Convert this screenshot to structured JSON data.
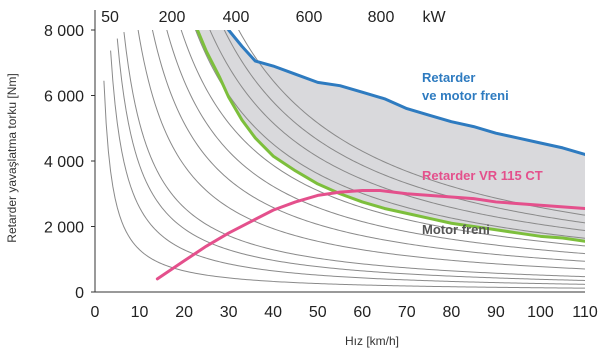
{
  "chart_data": {
    "type": "line",
    "xlabel": "Hız [km/h]",
    "ylabel": "Retarder yavaşlatma torku [Nm]",
    "xlim": [
      0,
      110
    ],
    "ylim": [
      0,
      8000
    ],
    "x_ticks": [
      "0",
      "10",
      "20",
      "30",
      "40",
      "50",
      "60",
      "70",
      "80",
      "90",
      "100",
      "110"
    ],
    "y_ticks": [
      "0",
      "2 000",
      "4 000",
      "6 000",
      "8 000"
    ],
    "power_ticks": [
      "50",
      "200",
      "400",
      "600",
      "800"
    ],
    "power_unit": "kW",
    "grid": false,
    "series": [
      {
        "name": "Retarder ve motor freni",
        "color": "#2E7BC0",
        "x": [
          30,
          33,
          36,
          40,
          45,
          50,
          55,
          60,
          65,
          70,
          75,
          80,
          85,
          90,
          95,
          100,
          105,
          110
        ],
        "y": [
          8000,
          7500,
          7050,
          6900,
          6650,
          6400,
          6300,
          6100,
          5900,
          5600,
          5400,
          5200,
          5050,
          4850,
          4700,
          4550,
          4400,
          4200
        ]
      },
      {
        "name": "Retarder VR 115 CT",
        "color": "#E4508C",
        "x": [
          14,
          20,
          25,
          30,
          35,
          40,
          45,
          50,
          55,
          60,
          64,
          70,
          75,
          80,
          85,
          90,
          95,
          100,
          105,
          110
        ],
        "y": [
          400,
          950,
          1400,
          1800,
          2150,
          2500,
          2750,
          2950,
          3050,
          3100,
          3100,
          3000,
          2950,
          2900,
          2850,
          2750,
          2700,
          2650,
          2600,
          2550
        ]
      },
      {
        "name": "Motor freni",
        "color": "#7DBF3C",
        "x": [
          23,
          25,
          28,
          30,
          33,
          36,
          40,
          45,
          50,
          55,
          60,
          65,
          70,
          75,
          80,
          85,
          90,
          95,
          100,
          105,
          110
        ],
        "y": [
          8000,
          7350,
          6550,
          5950,
          5250,
          4700,
          4150,
          3700,
          3300,
          3000,
          2750,
          2550,
          2400,
          2250,
          2100,
          2000,
          1900,
          1800,
          1700,
          1650,
          1550
        ]
      }
    ],
    "power_curves_kw": [
      50,
      100,
      150,
      200,
      300,
      400,
      500,
      600,
      700,
      800,
      900,
      1000
    ],
    "annotations": {
      "retarder_line1": "Retarder",
      "retarder_line2": "ve motor freni",
      "vr_label": "Retarder VR 115 CT",
      "motor_label": "Motor freni"
    },
    "colors": {
      "shade": "#D9D9DC",
      "power_curve": "#8A8A8A",
      "axis": "#333333"
    }
  }
}
